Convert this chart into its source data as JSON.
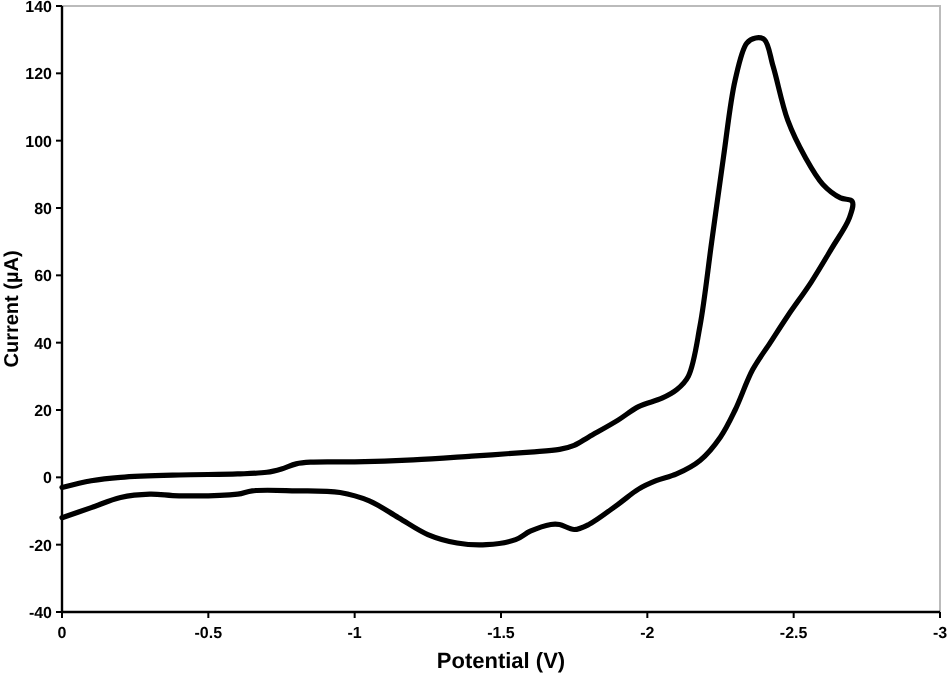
{
  "chart_data": {
    "type": "line",
    "xlabel": "Potential (V)",
    "ylabel": "Current (µA)",
    "xlim": [
      0,
      -3
    ],
    "xticks": [
      0,
      -0.5,
      -1,
      -1.5,
      -2,
      -2.5,
      -3
    ],
    "ylim": [
      -40,
      140
    ],
    "yticks": [
      -40,
      -20,
      0,
      20,
      40,
      60,
      80,
      100,
      120,
      140
    ],
    "grid": false,
    "marker": "none",
    "line_style": "solid",
    "series": [
      {
        "color": "#000000",
        "x": [
          0,
          -0.1,
          -0.2,
          -0.4,
          -0.6,
          -0.7,
          -0.75,
          -0.8,
          -0.85,
          -1,
          -1.2,
          -1.4,
          -1.6,
          -1.7,
          -1.75,
          -1.8,
          -1.9,
          -1.97,
          -2.05,
          -2.1,
          -2.14,
          -2.18,
          -2.22,
          -2.26,
          -2.3,
          -2.34,
          -2.37,
          -2.4,
          -2.43,
          -2.48,
          -2.54,
          -2.6,
          -2.66,
          -2.7,
          -2.69,
          -2.63,
          -2.56,
          -2.48,
          -2.42,
          -2.36,
          -2.3,
          -2.25,
          -2.18,
          -2.1,
          -2.03,
          -1.97,
          -1.9,
          -1.8,
          -1.75,
          -1.7,
          -1.67,
          -1.6,
          -1.55,
          -1.45,
          -1.35,
          -1.25,
          -1.15,
          -1.05,
          -0.95,
          -0.8,
          -0.65,
          -0.6,
          -0.4,
          -0.3,
          -0.2,
          -0.1,
          0
        ],
        "values": [
          -3,
          -1,
          0,
          0.7,
          1,
          1.5,
          2.5,
          4,
          4.5,
          4.6,
          5.2,
          6.3,
          7.5,
          8.3,
          9.5,
          12,
          17,
          21,
          23.5,
          26,
          30,
          45,
          70,
          95,
          118,
          129,
          130.5,
          130,
          122,
          106,
          95,
          87,
          83,
          82,
          77,
          68,
          58,
          48,
          40,
          32,
          20,
          12,
          5,
          1,
          -1,
          -3.5,
          -8,
          -14,
          -15.5,
          -14,
          -14,
          -16,
          -18.5,
          -20,
          -19.5,
          -17,
          -12,
          -7,
          -4.5,
          -4,
          -4,
          -5,
          -5.5,
          -5,
          -6,
          -9,
          -12
        ]
      }
    ]
  }
}
